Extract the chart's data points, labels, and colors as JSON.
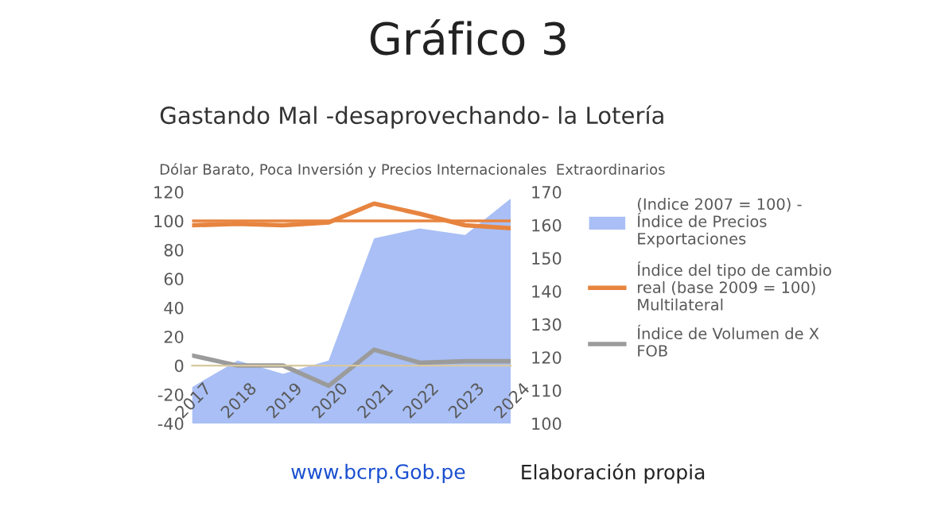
{
  "chart_data": {
    "type": "line",
    "title": "Gráfico 3",
    "subtitle": "Gastando Mal -desaprovechando- la Lotería",
    "annotations": [
      "Dólar Barato, Poca Inversión y Precios Internacionales  Extraordinarios",
      "www.bcrp.Gob.pe",
      "Elaboración propia"
    ],
    "categories": [
      "2017",
      "2018",
      "2019",
      "2020",
      "2021",
      "2022",
      "2023",
      "2024"
    ],
    "series": [
      {
        "name": "(Indice 2007 = 100) -\nÍndice de Precios\nExportaciones",
        "type": "area",
        "axis": "y2",
        "color": "#a9bff5",
        "values": [
          111,
          119,
          115,
          119,
          156,
          159,
          157,
          168
        ]
      },
      {
        "name": "Índice del tipo de cambio\nreal (base 2009 = 100)\nMultilateral",
        "color": "#e7843f",
        "values": [
          97,
          98,
          97,
          99,
          112,
          105,
          97,
          95
        ]
      },
      {
        "name": "Índice de Volumen de X\nFOB",
        "color": "#9b9b9b",
        "values": [
          7,
          0,
          0,
          -14,
          11,
          2,
          3,
          3
        ]
      }
    ],
    "ref_lines": [
      {
        "axis": "y",
        "value": 100,
        "color": "#e7843f"
      }
    ],
    "ylim": [
      -40,
      120
    ],
    "yticks": [
      -40,
      -20,
      0,
      20,
      40,
      60,
      80,
      100,
      120
    ],
    "y2lim": [
      100,
      170
    ],
    "y2ticks": [
      100,
      110,
      120,
      130,
      140,
      150,
      160,
      170
    ],
    "grid": false,
    "legend": "right",
    "marker": "none",
    "line_style": "solid"
  }
}
